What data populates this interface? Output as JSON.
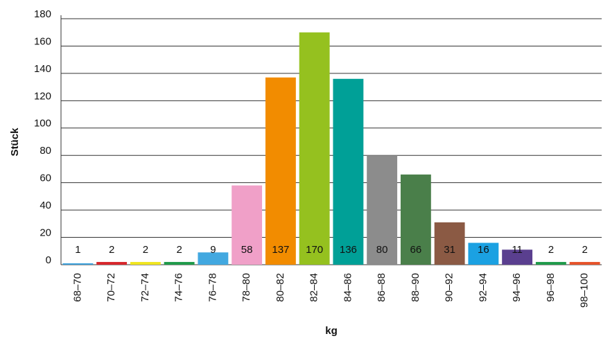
{
  "chart_data": {
    "type": "bar",
    "categories": [
      "68–70",
      "70–72",
      "72–74",
      "74–76",
      "76–78",
      "78–80",
      "80–82",
      "82–84",
      "84–86",
      "86–88",
      "88–90",
      "90–92",
      "92–94",
      "94–96",
      "96–98",
      "98–100"
    ],
    "values": [
      1,
      2,
      2,
      2,
      9,
      58,
      137,
      170,
      136,
      80,
      66,
      31,
      16,
      11,
      2,
      2
    ],
    "colors": [
      "#3aa0dc",
      "#d7262b",
      "#f0e51f",
      "#1f9a4a",
      "#42a8e0",
      "#f0a0c8",
      "#f28c00",
      "#95c11f",
      "#00a097",
      "#8c8c8c",
      "#4a7f4a",
      "#8b5a44",
      "#1ba1e2",
      "#5a3f8f",
      "#1f9a4a",
      "#e6532a"
    ],
    "xlabel": "kg",
    "ylabel": "Stück",
    "ylim": [
      0,
      180
    ],
    "yticks": [
      0,
      20,
      40,
      60,
      80,
      100,
      120,
      140,
      160,
      180
    ],
    "grid": true
  }
}
